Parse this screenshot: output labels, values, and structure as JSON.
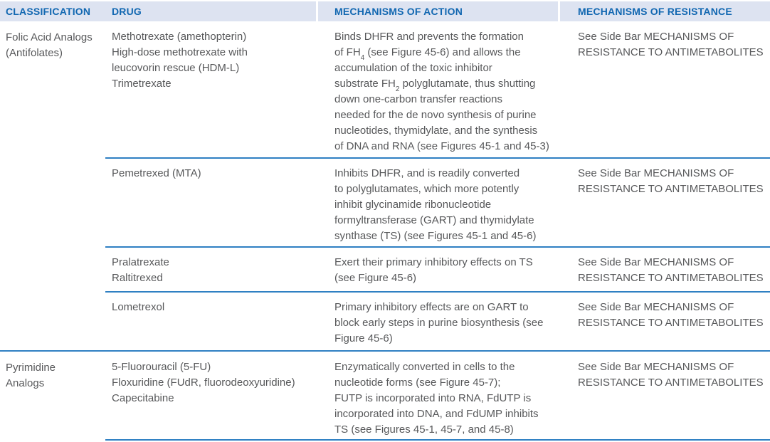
{
  "colors": {
    "header_bg": "#dde3f1",
    "header_text": "#1167b1",
    "rule_blue": "#2f80c3",
    "body_text": "#57585a"
  },
  "header": {
    "columns": [
      "CLASSIFICATION",
      "DRUG",
      "MECHANISMS OF ACTION",
      "MECHANISMS OF RESISTANCE"
    ]
  },
  "sections": [
    {
      "classification_lines": [
        "Folic Acid Analogs",
        "(Antifolates)"
      ],
      "rows": [
        {
          "drug_lines": [
            "Methotrexate (amethopterin)",
            "High-dose methotrexate with",
            "leucovorin rescue (HDM-L)",
            "Trimetrexate"
          ],
          "action_lines": [
            "Binds DHFR and prevents the formation",
            [
              {
                "t": "of FH"
              },
              {
                "t": "4",
                "sub": true
              },
              {
                "t": " (see Figure 45-6) and allows the"
              }
            ],
            "accumulation of the toxic inhibitor",
            [
              {
                "t": "substrate FH"
              },
              {
                "t": "2",
                "sub": true
              },
              {
                "t": " polyglutamate, thus shutting"
              }
            ],
            "down one-carbon transfer reactions",
            "needed for the de novo synthesis of purine",
            "nucleotides, thymidylate, and the synthesis",
            "of DNA and RNA (see Figures 45-1 and 45-3)"
          ],
          "resistance_lines": [
            "See Side Bar MECHANISMS OF",
            "RESISTANCE TO ANTIMETABOLITES"
          ]
        },
        {
          "drug_lines": [
            "Pemetrexed (MTA)"
          ],
          "action_lines": [
            "Inhibits DHFR, and is readily converted",
            "to polyglutamates, which more potently",
            "inhibit glycinamide ribonucleotide",
            "formyltransferase (GART) and thymidylate",
            "synthase (TS) (see Figures 45-1 and 45-6)"
          ],
          "resistance_lines": [
            "See Side Bar MECHANISMS OF",
            "RESISTANCE TO ANTIMETABOLITES"
          ]
        },
        {
          "drug_lines": [
            "Pralatrexate",
            "Raltitrexed"
          ],
          "action_lines": [
            "Exert their primary inhibitory effects on TS",
            "(see Figure 45-6)"
          ],
          "resistance_lines": [
            "See Side Bar MECHANISMS OF",
            "RESISTANCE TO ANTIMETABOLITES"
          ]
        },
        {
          "drug_lines": [
            "Lometrexol"
          ],
          "action_lines": [
            "Primary inhibitory effects are on GART to",
            "block early steps in purine biosynthesis (see",
            "Figure 45-6)"
          ],
          "resistance_lines": [
            "See Side Bar MECHANISMS OF",
            "RESISTANCE TO ANTIMETABOLITES"
          ]
        }
      ]
    },
    {
      "classification_lines": [
        "Pyrimidine",
        "Analogs"
      ],
      "rows": [
        {
          "drug_lines": [
            "5-Fluorouracil (5-FU)",
            "Floxuridine (FUdR, fluorodeoxyuridine)",
            "Capecitabine"
          ],
          "action_lines": [
            "Enzymatically converted in cells to the",
            "nucleotide forms (see Figure 45-7);",
            "FUTP is incorporated into RNA, FdUTP is",
            "incorporated into DNA, and FdUMP inhibits",
            "TS (see Figures 45-1, 45-7, and 45-8)"
          ],
          "resistance_lines": [
            "See Side Bar MECHANISMS OF",
            "RESISTANCE TO ANTIMETABOLITES"
          ]
        }
      ]
    }
  ]
}
